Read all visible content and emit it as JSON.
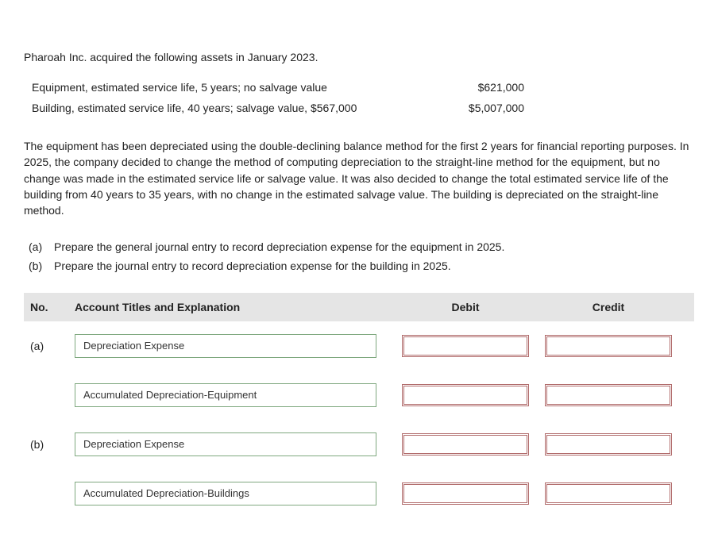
{
  "intro": "Pharoah Inc. acquired the following assets in January 2023.",
  "assets": [
    {
      "desc": "Equipment, estimated service life, 5 years; no salvage value",
      "value": "$621,000"
    },
    {
      "desc": "Building, estimated service life, 40 years; salvage value, $567,000",
      "value": "$5,007,000"
    }
  ],
  "paragraph": "The equipment has been depreciated using the double-declining balance method for the first 2 years for financial reporting purposes. In 2025, the company decided to change the method of computing depreciation to the straight-line method for the equipment, but no change was made in the estimated service life or salvage value. It was also decided to change the total estimated service life of the building from 40 years to 35 years, with no change in the estimated salvage value. The building is depreciated on the straight-line method.",
  "questions": [
    {
      "label": "(a)",
      "text": "Prepare the general journal entry to record depreciation expense for the equipment in 2025."
    },
    {
      "label": "(b)",
      "text": "Prepare the journal entry to record depreciation expense for the building in 2025."
    }
  ],
  "je_header": {
    "no": "No.",
    "acct": "Account Titles and Explanation",
    "debit": "Debit",
    "credit": "Credit"
  },
  "je_rows": [
    {
      "no": "(a)",
      "acct": "Depreciation Expense",
      "debit": "",
      "credit": ""
    },
    {
      "no": "",
      "acct": "Accumulated Depreciation-Equipment",
      "debit": "",
      "credit": ""
    },
    {
      "no": "(b)",
      "acct": "Depreciation Expense",
      "debit": "",
      "credit": ""
    },
    {
      "no": "",
      "acct": "Accumulated Depreciation-Buildings",
      "debit": "",
      "credit": ""
    }
  ],
  "colors": {
    "header_bg": "#e5e5e5",
    "acct_border": "#7fa87f",
    "amt_border": "#b06a6a",
    "text": "#222222",
    "background": "#ffffff"
  }
}
